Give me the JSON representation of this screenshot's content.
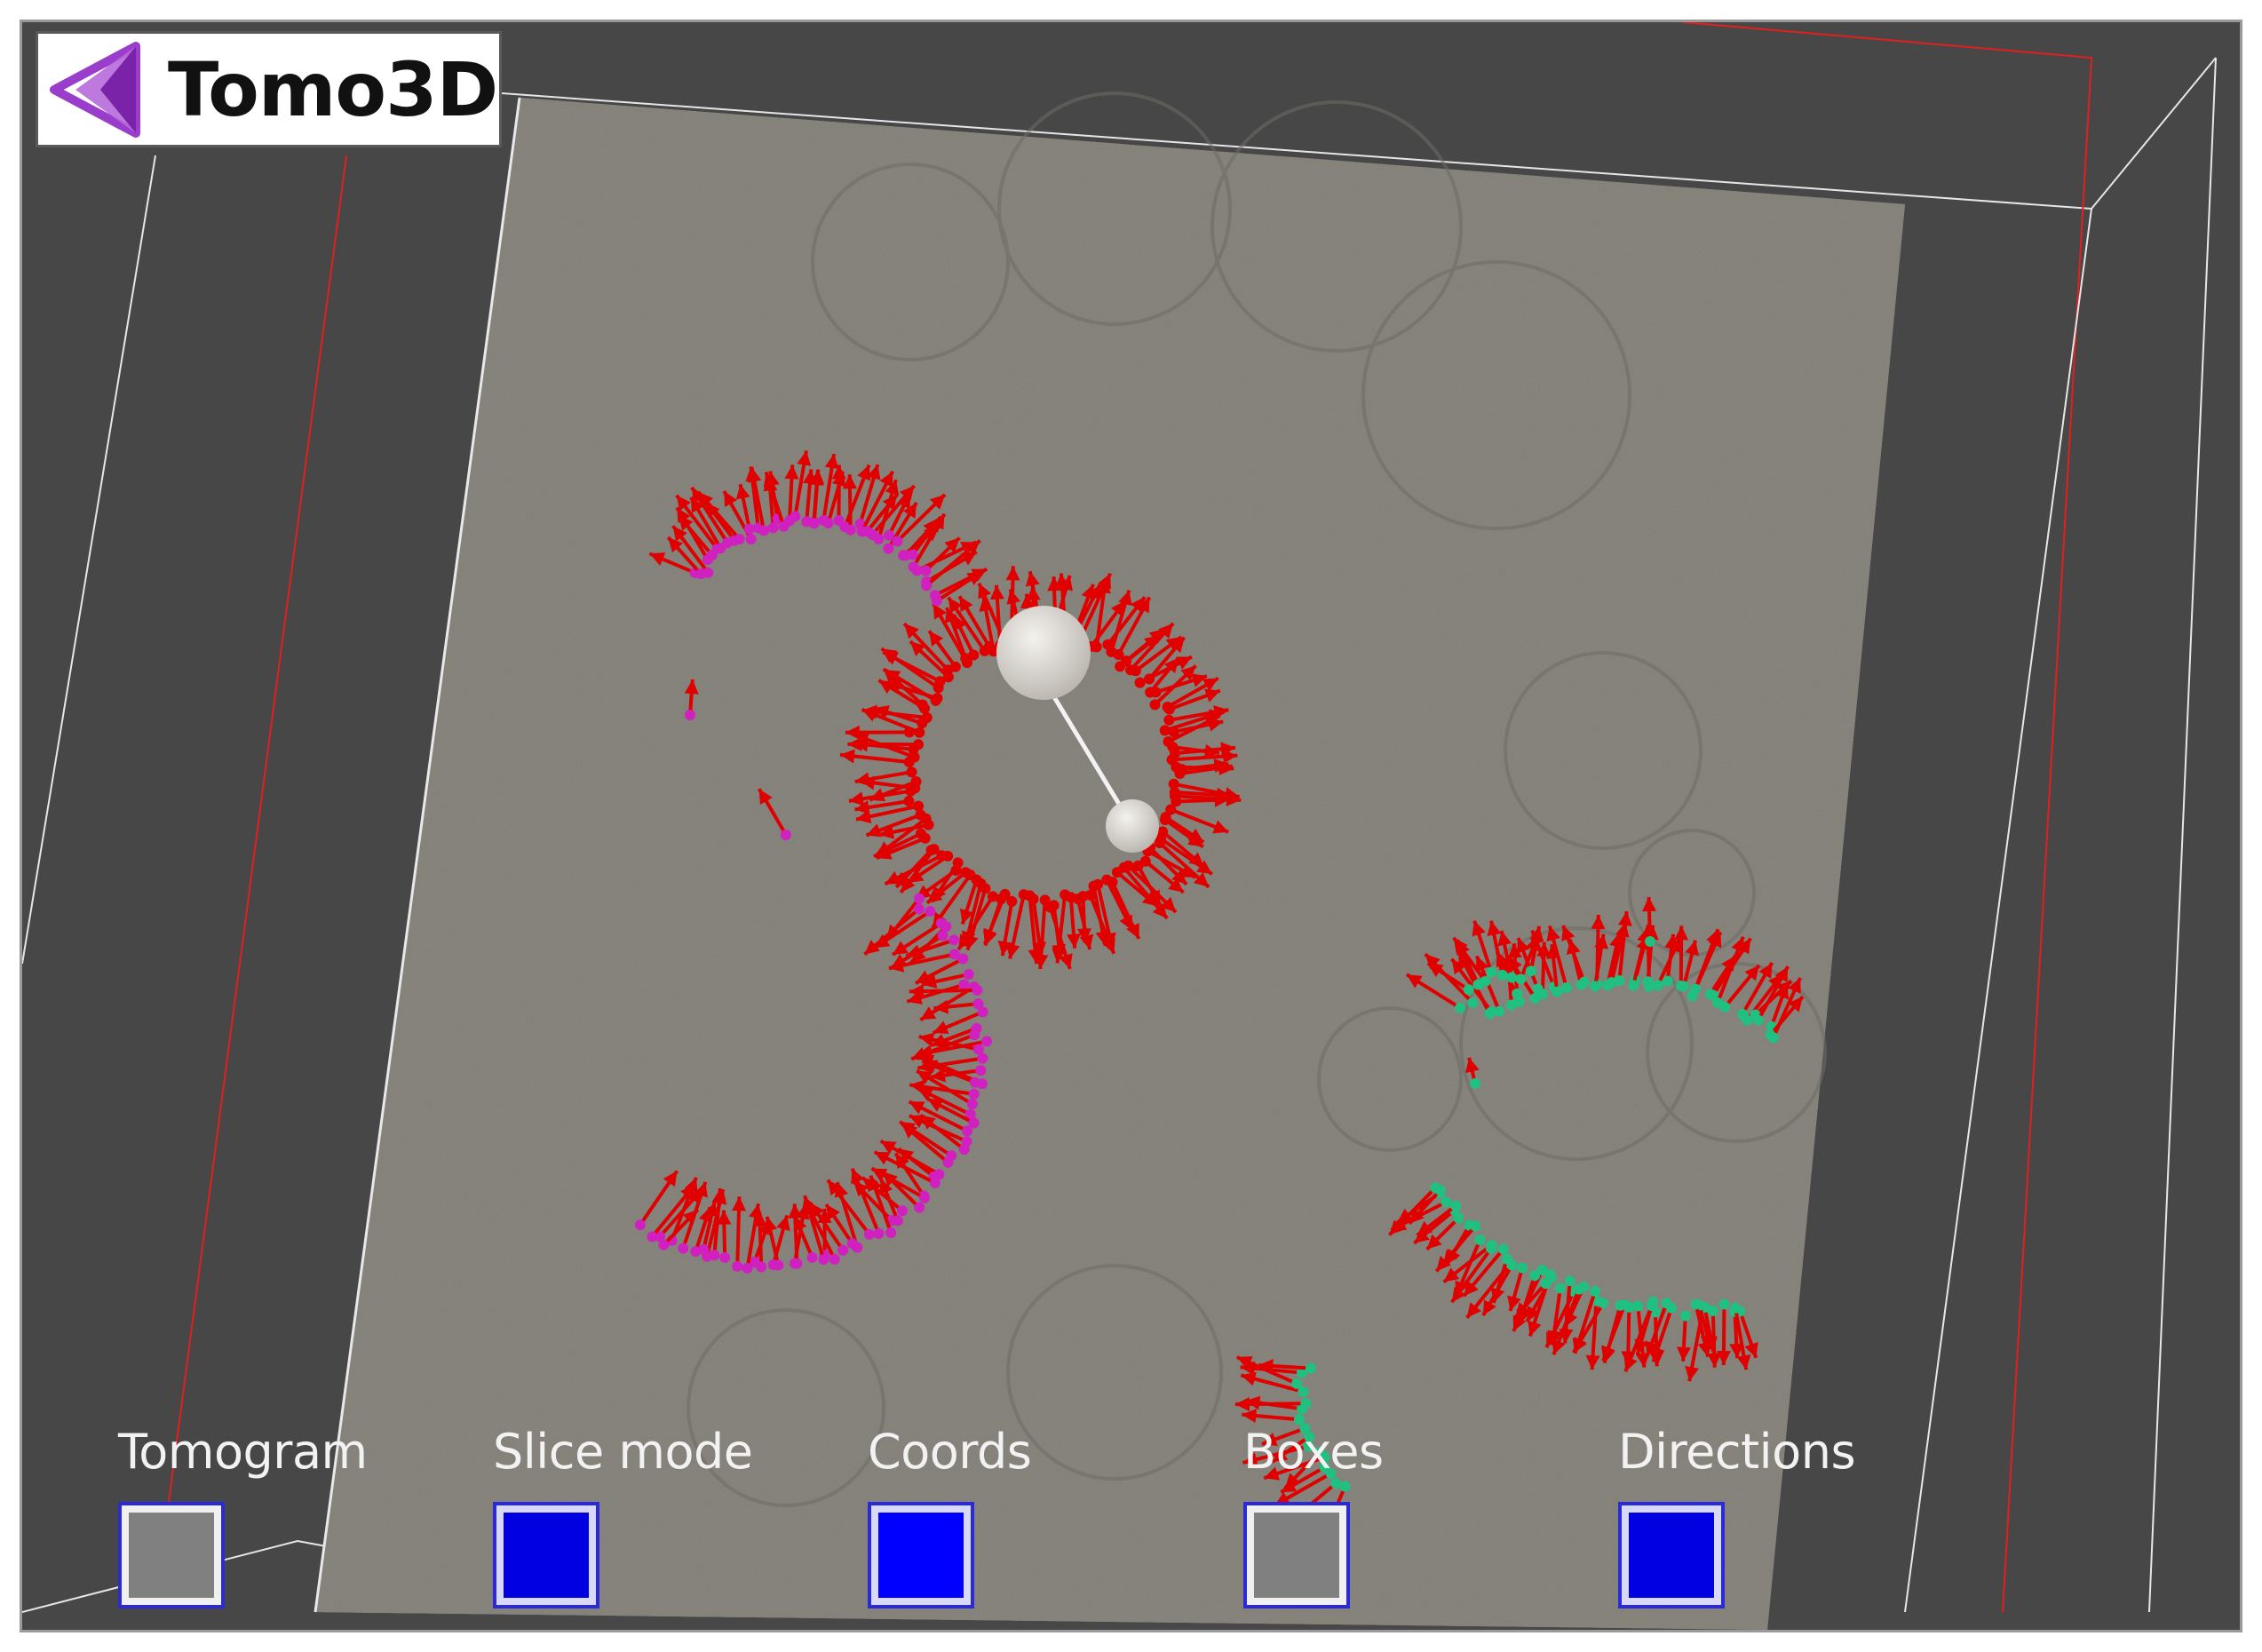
{
  "app": {
    "title": "Tomo3D"
  },
  "logo": {
    "text": "Tomo3D",
    "icon": "triangle-logo-icon",
    "color": "#9a3ccc"
  },
  "toggles": [
    {
      "label": "Tomogram",
      "state": "off",
      "fill_color": "#808080"
    },
    {
      "label": "Slice mode",
      "state": "on",
      "fill_color": "#0000e0"
    },
    {
      "label": "Coords",
      "state": "on",
      "fill_color": "#0000ff"
    },
    {
      "label": "Boxes",
      "state": "off",
      "fill_color": "#808080"
    },
    {
      "label": "Directions",
      "state": "on",
      "fill_color": "#0000e0"
    }
  ],
  "colors": {
    "background": "#474747",
    "slice": "#8a8780",
    "arrows": "#e00000",
    "coords_group_a": "#d020c0",
    "coords_group_b": "#20c080",
    "bounding_box_outer": "#e8e8e8",
    "bounding_box_inner": "#ff2020",
    "widget_handle": "#dedbd6"
  }
}
